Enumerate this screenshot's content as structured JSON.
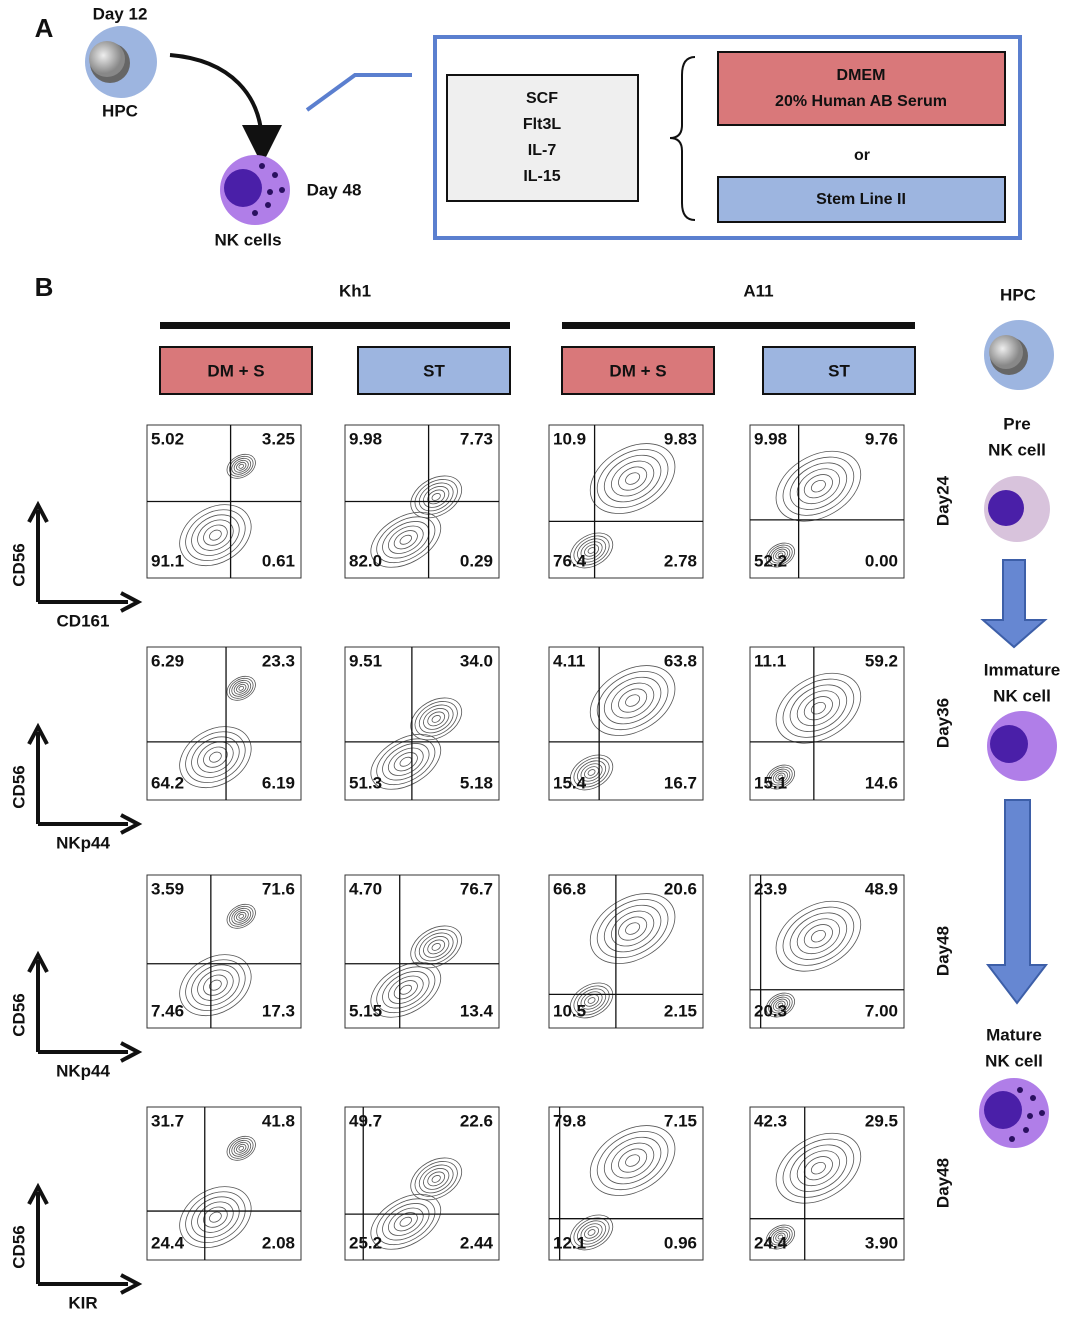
{
  "panel_a": {
    "label": "A",
    "hpc": {
      "day": "Day 12",
      "name": "HPC"
    },
    "nk": {
      "day": "Day 48",
      "name": "NK cells"
    },
    "cytokines": [
      "SCF",
      "Flt3L",
      "IL-7",
      "IL-15"
    ],
    "media": {
      "first": [
        "DMEM",
        "20% Human AB Serum"
      ],
      "or": "or",
      "second": "Stem Line II"
    }
  },
  "panel_b": {
    "label": "B",
    "groups": [
      {
        "name": "Kh1",
        "conditions": [
          "DM + S",
          "ST"
        ]
      },
      {
        "name": "A11",
        "conditions": [
          "DM + S",
          "ST"
        ]
      }
    ],
    "rows": [
      {
        "y_axis": "CD56",
        "x_axis": "CD161",
        "day": "Day24",
        "plots": [
          [
            "5.02",
            "3.25",
            "91.1",
            "0.61"
          ],
          [
            "9.98",
            "7.73",
            "82.0",
            "0.29"
          ],
          [
            "10.9",
            "9.83",
            "76.4",
            "2.78"
          ],
          [
            "9.98",
            "9.76",
            "52.2",
            "0.00"
          ]
        ]
      },
      {
        "y_axis": "CD56",
        "x_axis": "NKp44",
        "day": "Day36",
        "plots": [
          [
            "6.29",
            "23.3",
            "64.2",
            "6.19"
          ],
          [
            "9.51",
            "34.0",
            "51.3",
            "5.18"
          ],
          [
            "4.11",
            "63.8",
            "15.4",
            "16.7"
          ],
          [
            "11.1",
            "59.2",
            "15.1",
            "14.6"
          ]
        ]
      },
      {
        "y_axis": "CD56",
        "x_axis": "NKp44",
        "day": "Day48",
        "plots": [
          [
            "3.59",
            "71.6",
            "7.46",
            "17.3"
          ],
          [
            "4.70",
            "76.7",
            "5.15",
            "13.4"
          ],
          [
            "66.8",
            "20.6",
            "10.5",
            "2.15"
          ],
          [
            "23.9",
            "48.9",
            "20.3",
            "7.00"
          ]
        ]
      },
      {
        "y_axis": "CD56",
        "x_axis": "KIR",
        "day": "Day48",
        "plots": [
          [
            "31.7",
            "41.8",
            "24.4",
            "2.08"
          ],
          [
            "49.7",
            "22.6",
            "25.2",
            "2.44"
          ],
          [
            "79.8",
            "7.15",
            "12.1",
            "0.96"
          ],
          [
            "42.3",
            "29.5",
            "24.4",
            "3.90"
          ]
        ]
      }
    ],
    "stages": [
      [
        "HPC"
      ],
      [
        "Pre",
        "NK cell"
      ],
      [
        "Immature",
        "NK cell"
      ],
      [
        "Mature",
        "NK cell"
      ]
    ]
  }
}
